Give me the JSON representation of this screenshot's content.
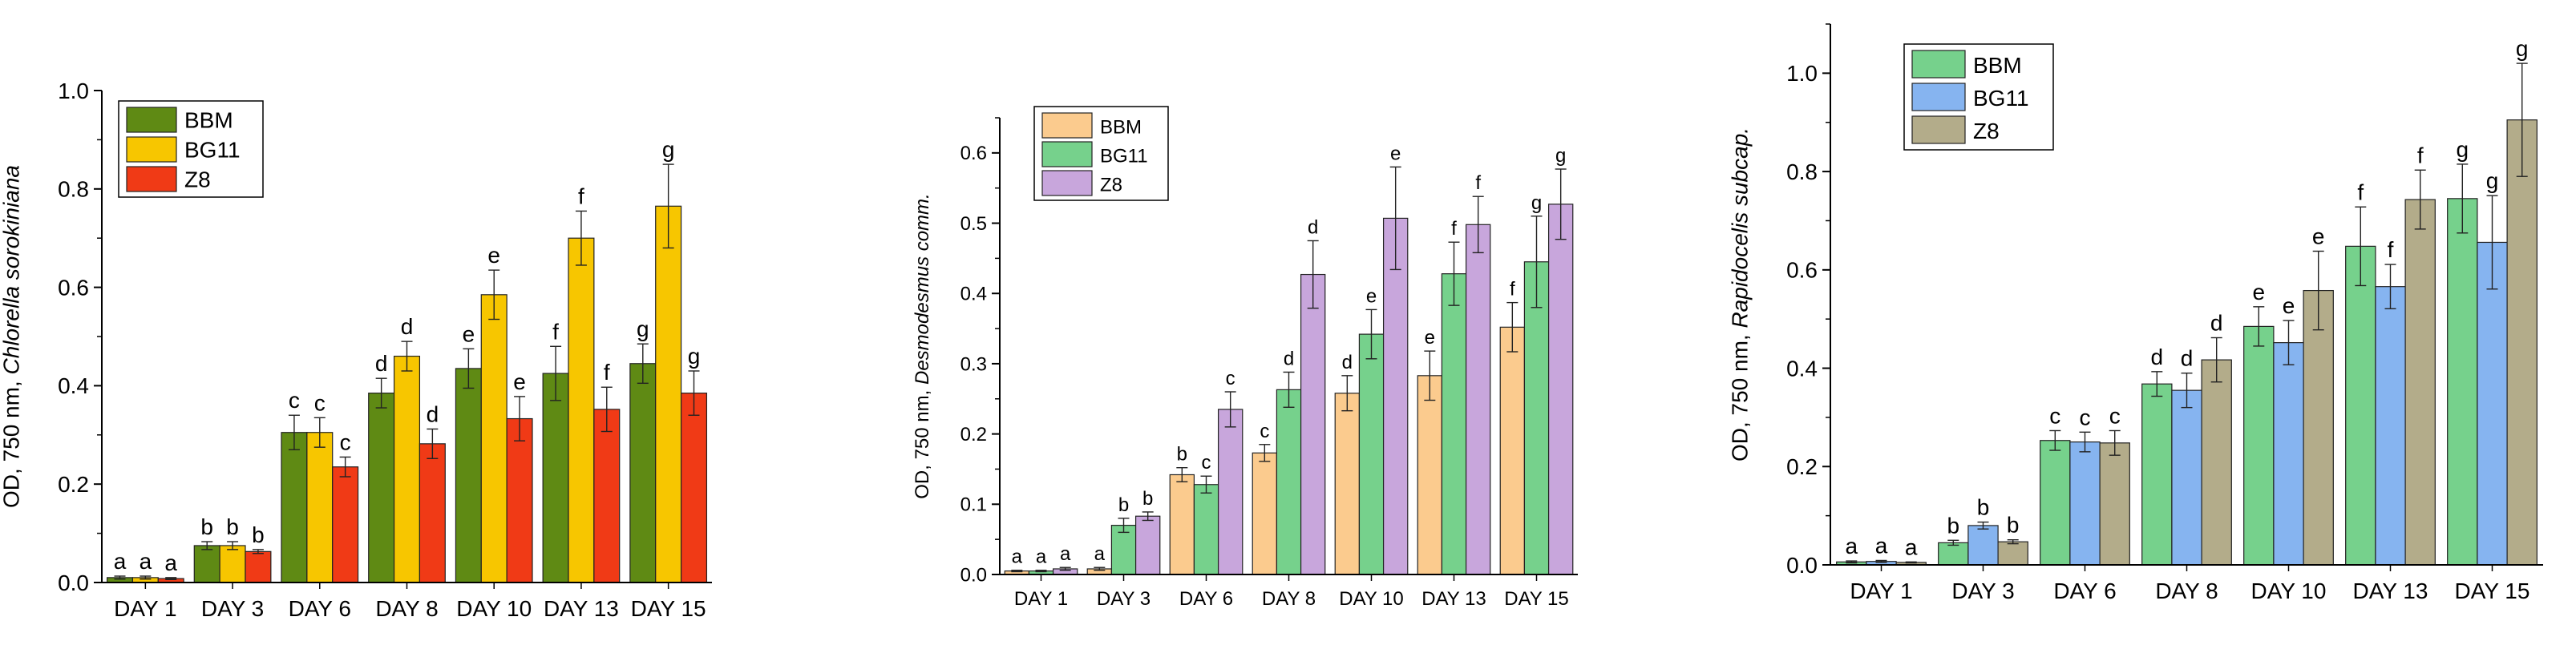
{
  "figure_title": "",
  "chart_data": [
    {
      "type": "bar",
      "title": "",
      "xlabel": "",
      "ylabel_prefix": "OD, 750 nm, ",
      "ylabel_species": "Chlorella sorokiniana",
      "ylim": [
        0,
        1.0
      ],
      "yticks": [
        "0.0",
        "0.2",
        "0.4",
        "0.6",
        "0.8",
        "1.0"
      ],
      "categories": [
        "DAY 1",
        "DAY 3",
        "DAY 6",
        "DAY 8",
        "DAY 10",
        "DAY 13",
        "DAY 15"
      ],
      "legend_position": "top-left",
      "series": [
        {
          "name": "BBM",
          "color": "#5F8A14",
          "values": [
            0.01,
            0.075,
            0.305,
            0.385,
            0.435,
            0.425,
            0.445
          ],
          "errors": [
            0.003,
            0.008,
            0.035,
            0.03,
            0.04,
            0.055,
            0.04
          ],
          "letters": [
            "a",
            "b",
            "c",
            "d",
            "e",
            "f",
            "g"
          ]
        },
        {
          "name": "BG11",
          "color": "#F7C600",
          "values": [
            0.01,
            0.075,
            0.305,
            0.46,
            0.585,
            0.7,
            0.765
          ],
          "errors": [
            0.003,
            0.008,
            0.03,
            0.03,
            0.05,
            0.055,
            0.085
          ],
          "letters": [
            "a",
            "b",
            "c",
            "d",
            "e",
            "f",
            "g"
          ]
        },
        {
          "name": "Z8",
          "color": "#F03A16",
          "values": [
            0.008,
            0.063,
            0.235,
            0.282,
            0.333,
            0.352,
            0.385
          ],
          "errors": [
            0.002,
            0.004,
            0.02,
            0.03,
            0.045,
            0.045,
            0.045
          ],
          "letters": [
            "a",
            "b",
            "c",
            "d",
            "e",
            "f",
            "g"
          ]
        }
      ]
    },
    {
      "type": "bar",
      "title": "",
      "xlabel": "",
      "ylabel_prefix": "OD, 750 nm, ",
      "ylabel_species": "Desmodesmus comm.",
      "ylim": [
        0,
        0.65
      ],
      "yticks": [
        "0.0",
        "0.1",
        "0.2",
        "0.3",
        "0.4",
        "0.5",
        "0.6"
      ],
      "categories": [
        "DAY 1",
        "DAY 3",
        "DAY 6",
        "DAY 8",
        "DAY 10",
        "DAY 13",
        "DAY 15"
      ],
      "legend_position": "top-left",
      "series": [
        {
          "name": "BBM",
          "color": "#FBCB8E",
          "values": [
            0.005,
            0.008,
            0.142,
            0.173,
            0.258,
            0.283,
            0.352
          ],
          "errors": [
            0.001,
            0.002,
            0.01,
            0.012,
            0.025,
            0.035,
            0.035
          ],
          "letters": [
            "a",
            "a",
            "b",
            "c",
            "d",
            "e",
            "f"
          ]
        },
        {
          "name": "BG11",
          "color": "#76D18C",
          "values": [
            0.005,
            0.07,
            0.128,
            0.263,
            0.342,
            0.428,
            0.445
          ],
          "errors": [
            0.001,
            0.01,
            0.012,
            0.025,
            0.035,
            0.045,
            0.065
          ],
          "letters": [
            "a",
            "b",
            "c",
            "d",
            "e",
            "f",
            "g"
          ]
        },
        {
          "name": "Z8",
          "color": "#C8A6DC",
          "values": [
            0.008,
            0.083,
            0.235,
            0.427,
            0.507,
            0.498,
            0.527
          ],
          "errors": [
            0.002,
            0.006,
            0.025,
            0.048,
            0.073,
            0.04,
            0.05
          ],
          "letters": [
            "a",
            "b",
            "c",
            "d",
            "e",
            "f",
            "g"
          ]
        }
      ]
    },
    {
      "type": "bar",
      "title": "",
      "xlabel": "",
      "ylabel_prefix": "OD, 750 nm, ",
      "ylabel_species": "Rapidocelis subcap.",
      "ylim": [
        0,
        1.1
      ],
      "yticks": [
        "0.0",
        "0.2",
        "0.4",
        "0.6",
        "0.8",
        "1.0"
      ],
      "categories": [
        "DAY 1",
        "DAY 3",
        "DAY 6",
        "DAY 8",
        "DAY 10",
        "DAY 13",
        "DAY 15"
      ],
      "legend_position": "top-left",
      "series": [
        {
          "name": "BBM",
          "color": "#76D18C",
          "values": [
            0.006,
            0.045,
            0.253,
            0.368,
            0.485,
            0.648,
            0.745
          ],
          "errors": [
            0.002,
            0.005,
            0.02,
            0.025,
            0.04,
            0.08,
            0.07
          ],
          "letters": [
            "a",
            "b",
            "c",
            "d",
            "e",
            "f",
            "g"
          ]
        },
        {
          "name": "BG11",
          "color": "#86B4F0",
          "values": [
            0.007,
            0.08,
            0.25,
            0.355,
            0.452,
            0.566,
            0.656
          ],
          "errors": [
            0.002,
            0.007,
            0.02,
            0.035,
            0.045,
            0.045,
            0.095
          ],
          "letters": [
            "a",
            "b",
            "c",
            "d",
            "e",
            "f",
            "g"
          ]
        },
        {
          "name": "Z8",
          "color": "#B3AC8A",
          "values": [
            0.005,
            0.047,
            0.248,
            0.417,
            0.558,
            0.743,
            0.905
          ],
          "errors": [
            0.001,
            0.004,
            0.025,
            0.045,
            0.08,
            0.06,
            0.115
          ],
          "letters": [
            "a",
            "b",
            "c",
            "d",
            "e",
            "f",
            "g"
          ]
        }
      ]
    }
  ]
}
